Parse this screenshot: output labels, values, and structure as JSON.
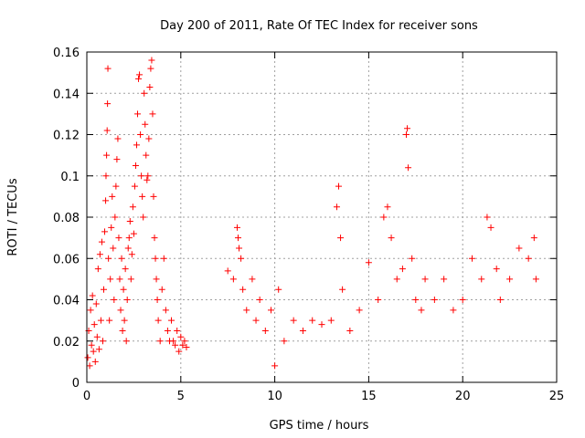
{
  "chart_data": {
    "type": "scatter",
    "title": "Day 200 of 2011, Rate Of TEC Index for receiver sons",
    "xlabel": "GPS time / hours",
    "ylabel": "ROTI / TECUs",
    "xlim": [
      0,
      25
    ],
    "ylim": [
      0,
      0.16
    ],
    "xticks": [
      0,
      5,
      10,
      15,
      20,
      25
    ],
    "yticks": [
      0,
      0.02,
      0.04,
      0.06,
      0.08,
      0.1,
      0.12,
      0.14,
      0.16
    ],
    "xtick_labels": [
      "0",
      "5",
      "10",
      "15",
      "20",
      "25"
    ],
    "ytick_labels": [
      "0",
      "0.02",
      "0.04",
      "0.06",
      "0.08",
      "0.1",
      "0.12",
      "0.14",
      "0.16"
    ],
    "grid": true,
    "marker": "+",
    "marker_color": "#ff0000",
    "series": [
      {
        "points": [
          [
            0.05,
            0.012
          ],
          [
            0.1,
            0.025
          ],
          [
            0.15,
            0.008
          ],
          [
            0.2,
            0.035
          ],
          [
            0.25,
            0.018
          ],
          [
            0.3,
            0.042
          ],
          [
            0.35,
            0.015
          ],
          [
            0.4,
            0.028
          ],
          [
            0.45,
            0.01
          ],
          [
            0.5,
            0.038
          ],
          [
            0.55,
            0.022
          ],
          [
            0.6,
            0.055
          ],
          [
            0.65,
            0.016
          ],
          [
            0.7,
            0.062
          ],
          [
            0.75,
            0.03
          ],
          [
            0.8,
            0.068
          ],
          [
            0.85,
            0.02
          ],
          [
            0.9,
            0.045
          ],
          [
            0.95,
            0.073
          ],
          [
            1.0,
            0.088
          ],
          [
            1.02,
            0.1
          ],
          [
            1.05,
            0.11
          ],
          [
            1.08,
            0.122
          ],
          [
            1.1,
            0.135
          ],
          [
            1.12,
            0.152
          ],
          [
            1.15,
            0.06
          ],
          [
            1.2,
            0.03
          ],
          [
            1.25,
            0.05
          ],
          [
            1.3,
            0.075
          ],
          [
            1.35,
            0.09
          ],
          [
            1.4,
            0.065
          ],
          [
            1.45,
            0.04
          ],
          [
            1.5,
            0.08
          ],
          [
            1.55,
            0.095
          ],
          [
            1.6,
            0.108
          ],
          [
            1.65,
            0.118
          ],
          [
            1.7,
            0.07
          ],
          [
            1.75,
            0.05
          ],
          [
            1.8,
            0.035
          ],
          [
            1.85,
            0.06
          ],
          [
            1.9,
            0.025
          ],
          [
            1.95,
            0.045
          ],
          [
            2.0,
            0.03
          ],
          [
            2.05,
            0.055
          ],
          [
            2.1,
            0.02
          ],
          [
            2.15,
            0.04
          ],
          [
            2.2,
            0.065
          ],
          [
            2.25,
            0.07
          ],
          [
            2.3,
            0.078
          ],
          [
            2.35,
            0.05
          ],
          [
            2.4,
            0.062
          ],
          [
            2.45,
            0.085
          ],
          [
            2.5,
            0.072
          ],
          [
            2.55,
            0.095
          ],
          [
            2.6,
            0.105
          ],
          [
            2.65,
            0.115
          ],
          [
            2.7,
            0.13
          ],
          [
            2.75,
            0.147
          ],
          [
            2.8,
            0.149
          ],
          [
            2.85,
            0.12
          ],
          [
            2.9,
            0.1
          ],
          [
            2.95,
            0.09
          ],
          [
            3.0,
            0.08
          ],
          [
            3.05,
            0.14
          ],
          [
            3.1,
            0.125
          ],
          [
            3.15,
            0.11
          ],
          [
            3.2,
            0.098
          ],
          [
            3.25,
            0.1
          ],
          [
            3.3,
            0.118
          ],
          [
            3.35,
            0.143
          ],
          [
            3.4,
            0.152
          ],
          [
            3.45,
            0.156
          ],
          [
            3.5,
            0.13
          ],
          [
            3.55,
            0.09
          ],
          [
            3.6,
            0.07
          ],
          [
            3.65,
            0.06
          ],
          [
            3.7,
            0.05
          ],
          [
            3.75,
            0.04
          ],
          [
            3.8,
            0.03
          ],
          [
            3.9,
            0.02
          ],
          [
            4.0,
            0.045
          ],
          [
            4.1,
            0.06
          ],
          [
            4.2,
            0.035
          ],
          [
            4.3,
            0.025
          ],
          [
            4.4,
            0.02
          ],
          [
            4.5,
            0.03
          ],
          [
            4.6,
            0.02
          ],
          [
            4.7,
            0.018
          ],
          [
            4.8,
            0.025
          ],
          [
            4.9,
            0.015
          ],
          [
            5.0,
            0.022
          ],
          [
            5.1,
            0.018
          ],
          [
            5.2,
            0.02
          ],
          [
            5.3,
            0.017
          ],
          [
            7.5,
            0.054
          ],
          [
            7.8,
            0.05
          ],
          [
            8.0,
            0.075
          ],
          [
            8.05,
            0.07
          ],
          [
            8.1,
            0.065
          ],
          [
            8.2,
            0.06
          ],
          [
            8.3,
            0.045
          ],
          [
            8.5,
            0.035
          ],
          [
            8.8,
            0.05
          ],
          [
            9.0,
            0.03
          ],
          [
            9.2,
            0.04
          ],
          [
            9.5,
            0.025
          ],
          [
            9.8,
            0.035
          ],
          [
            10.0,
            0.008
          ],
          [
            10.2,
            0.045
          ],
          [
            10.5,
            0.02
          ],
          [
            11.0,
            0.03
          ],
          [
            11.5,
            0.025
          ],
          [
            12.0,
            0.03
          ],
          [
            12.5,
            0.028
          ],
          [
            13.0,
            0.03
          ],
          [
            13.3,
            0.085
          ],
          [
            13.4,
            0.095
          ],
          [
            13.5,
            0.07
          ],
          [
            13.6,
            0.045
          ],
          [
            14.0,
            0.025
          ],
          [
            14.5,
            0.035
          ],
          [
            15.0,
            0.058
          ],
          [
            15.5,
            0.04
          ],
          [
            15.8,
            0.08
          ],
          [
            16.0,
            0.085
          ],
          [
            16.2,
            0.07
          ],
          [
            16.5,
            0.05
          ],
          [
            16.8,
            0.055
          ],
          [
            17.0,
            0.12
          ],
          [
            17.05,
            0.123
          ],
          [
            17.1,
            0.104
          ],
          [
            17.3,
            0.06
          ],
          [
            17.5,
            0.04
          ],
          [
            17.8,
            0.035
          ],
          [
            18.0,
            0.05
          ],
          [
            18.5,
            0.04
          ],
          [
            19.0,
            0.05
          ],
          [
            19.5,
            0.035
          ],
          [
            20.0,
            0.04
          ],
          [
            20.5,
            0.06
          ],
          [
            21.0,
            0.05
          ],
          [
            21.3,
            0.08
          ],
          [
            21.5,
            0.075
          ],
          [
            21.8,
            0.055
          ],
          [
            22.0,
            0.04
          ],
          [
            22.5,
            0.05
          ],
          [
            23.0,
            0.065
          ],
          [
            23.5,
            0.06
          ],
          [
            23.8,
            0.07
          ],
          [
            23.9,
            0.05
          ]
        ]
      }
    ]
  }
}
